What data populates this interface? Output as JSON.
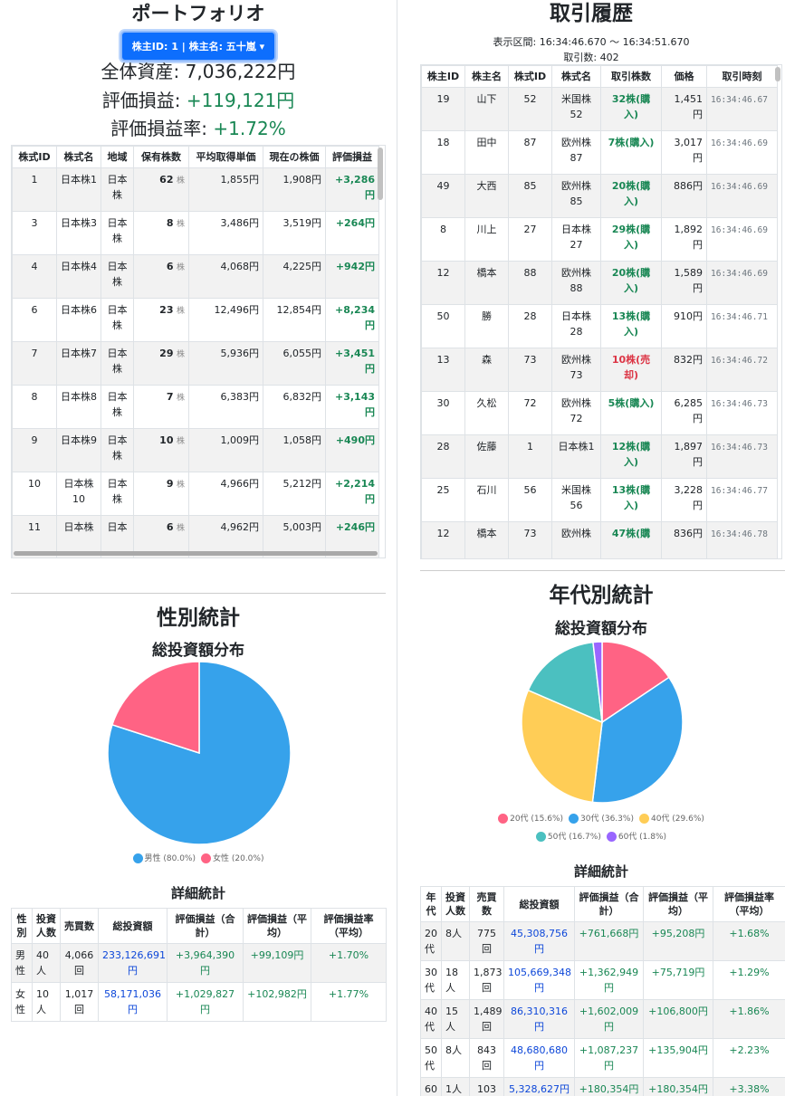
{
  "portfolio": {
    "title": "ポートフォリオ",
    "selector_label": "株主ID: 1 | 株主名: 五十嵐",
    "total_assets": "全体資産: 7,036,222円",
    "pl_label": "評価損益: ",
    "pl_value": "+119,121円",
    "pl_rate_label": "評価損益率: ",
    "pl_rate_value": "+1.72%",
    "columns": [
      "株式ID",
      "株式名",
      "地域",
      "保有株数",
      "平均取得単価",
      "現在の株価",
      "評価損益"
    ],
    "share_unit": "株",
    "rows": [
      {
        "id": "1",
        "name": "日本株1",
        "region": "日本株",
        "shares": "62",
        "avg": "1,855円",
        "price": "1,908円",
        "pl": "+3,286円"
      },
      {
        "id": "3",
        "name": "日本株3",
        "region": "日本株",
        "shares": "8",
        "avg": "3,486円",
        "price": "3,519円",
        "pl": "+264円"
      },
      {
        "id": "4",
        "name": "日本株4",
        "region": "日本株",
        "shares": "6",
        "avg": "4,068円",
        "price": "4,225円",
        "pl": "+942円"
      },
      {
        "id": "6",
        "name": "日本株6",
        "region": "日本株",
        "shares": "23",
        "avg": "12,496円",
        "price": "12,854円",
        "pl": "+8,234円"
      },
      {
        "id": "7",
        "name": "日本株7",
        "region": "日本株",
        "shares": "29",
        "avg": "5,936円",
        "price": "6,055円",
        "pl": "+3,451円"
      },
      {
        "id": "8",
        "name": "日本株8",
        "region": "日本株",
        "shares": "7",
        "avg": "6,383円",
        "price": "6,832円",
        "pl": "+3,143円"
      },
      {
        "id": "9",
        "name": "日本株9",
        "region": "日本株",
        "shares": "10",
        "avg": "1,009円",
        "price": "1,058円",
        "pl": "+490円"
      },
      {
        "id": "10",
        "name": "日本株10",
        "region": "日本株",
        "shares": "9",
        "avg": "4,966円",
        "price": "5,212円",
        "pl": "+2,214円"
      },
      {
        "id": "11",
        "name": "日本株",
        "region": "日本",
        "shares": "6",
        "avg": "4,962円",
        "price": "5,003円",
        "pl": "+246円"
      }
    ]
  },
  "trades": {
    "title": "取引履歴",
    "range": "表示区間: 16:34:46.670 〜 16:34:51.670",
    "count": "取引数: 402",
    "columns": [
      "株主ID",
      "株主名",
      "株式ID",
      "株式名",
      "取引株数",
      "価格",
      "取引時刻"
    ],
    "rows": [
      {
        "uid": "19",
        "uname": "山下",
        "sid": "52",
        "sname": "米国株52",
        "qty": "32株(購入)",
        "type": "buy",
        "price": "1,451円",
        "time": "16:34:46.67"
      },
      {
        "uid": "18",
        "uname": "田中",
        "sid": "87",
        "sname": "欧州株87",
        "qty": "7株(購入)",
        "type": "buy",
        "price": "3,017円",
        "time": "16:34:46.69"
      },
      {
        "uid": "49",
        "uname": "大西",
        "sid": "85",
        "sname": "欧州株85",
        "qty": "20株(購入)",
        "type": "buy",
        "price": "886円",
        "time": "16:34:46.69"
      },
      {
        "uid": "8",
        "uname": "川上",
        "sid": "27",
        "sname": "日本株27",
        "qty": "29株(購入)",
        "type": "buy",
        "price": "1,892円",
        "time": "16:34:46.69"
      },
      {
        "uid": "12",
        "uname": "橋本",
        "sid": "88",
        "sname": "欧州株88",
        "qty": "20株(購入)",
        "type": "buy",
        "price": "1,589円",
        "time": "16:34:46.69"
      },
      {
        "uid": "50",
        "uname": "勝",
        "sid": "28",
        "sname": "日本株28",
        "qty": "13株(購入)",
        "type": "buy",
        "price": "910円",
        "time": "16:34:46.71"
      },
      {
        "uid": "13",
        "uname": "森",
        "sid": "73",
        "sname": "欧州株73",
        "qty": "10株(売却)",
        "type": "sell",
        "price": "832円",
        "time": "16:34:46.72"
      },
      {
        "uid": "30",
        "uname": "久松",
        "sid": "72",
        "sname": "欧州株72",
        "qty": "5株(購入)",
        "type": "buy",
        "price": "6,285円",
        "time": "16:34:46.73"
      },
      {
        "uid": "28",
        "uname": "佐藤",
        "sid": "1",
        "sname": "日本株1",
        "qty": "12株(購入)",
        "type": "buy",
        "price": "1,897円",
        "time": "16:34:46.73"
      },
      {
        "uid": "25",
        "uname": "石川",
        "sid": "56",
        "sname": "米国株56",
        "qty": "13株(購入)",
        "type": "buy",
        "price": "3,228円",
        "time": "16:34:46.77"
      },
      {
        "uid": "12",
        "uname": "橋本",
        "sid": "73",
        "sname": "欧州株",
        "qty": "47株(購",
        "type": "buy",
        "price": "836円",
        "time": "16:34:46.78"
      }
    ]
  },
  "gender": {
    "title": "性別統計",
    "chart_title": "総投資額分布",
    "detail_title": "詳細統計",
    "columns": [
      "性別",
      "投資人数",
      "売買数",
      "総投資額",
      "評価損益（合計）",
      "評価損益（平均）",
      "評価損益率（平均）"
    ],
    "rows": [
      {
        "label": "男性",
        "people": "40人",
        "trades": "4,066回",
        "total": "233,126,691円",
        "pl_sum": "+3,964,390円",
        "pl_avg": "+99,109円",
        "rate": "+1.70%"
      },
      {
        "label": "女性",
        "people": "10人",
        "trades": "1,017回",
        "total": "58,171,036円",
        "pl_sum": "+1,029,827円",
        "pl_avg": "+102,982円",
        "rate": "+1.77%"
      }
    ]
  },
  "age": {
    "title": "年代別統計",
    "chart_title": "総投資額分布",
    "detail_title": "詳細統計",
    "columns": [
      "年代",
      "投資人数",
      "売買数",
      "総投資額",
      "評価損益（合計）",
      "評価損益（平均）",
      "評価損益率（平均）"
    ],
    "rows": [
      {
        "label": "20代",
        "people": "8人",
        "trades": "775回",
        "total": "45,308,756円",
        "pl_sum": "+761,668円",
        "pl_avg": "+95,208円",
        "rate": "+1.68%"
      },
      {
        "label": "30代",
        "people": "18人",
        "trades": "1,873回",
        "total": "105,669,348円",
        "pl_sum": "+1,362,949円",
        "pl_avg": "+75,719円",
        "rate": "+1.29%"
      },
      {
        "label": "40代",
        "people": "15人",
        "trades": "1,489回",
        "total": "86,310,316円",
        "pl_sum": "+1,602,009円",
        "pl_avg": "+106,800円",
        "rate": "+1.86%"
      },
      {
        "label": "50代",
        "people": "8人",
        "trades": "843回",
        "total": "48,680,680円",
        "pl_sum": "+1,087,237円",
        "pl_avg": "+135,904円",
        "rate": "+2.23%"
      },
      {
        "label": "60",
        "people": "1人",
        "trades": "103回",
        "total": "5,328,627円",
        "pl_sum": "+180,354円",
        "pl_avg": "+180,354円",
        "rate": "+3.38%"
      }
    ]
  },
  "chart_data": [
    {
      "type": "pie",
      "title": "総投資額分布",
      "labels": [
        "男性 (80.0%)",
        "女性 (20.0%)"
      ],
      "values": [
        80.0,
        20.0
      ],
      "colors": [
        "#36a2eb",
        "#ff6384"
      ],
      "legend": "bottom"
    },
    {
      "type": "pie",
      "title": "総投資額分布",
      "labels": [
        "20代 (15.6%)",
        "30代 (36.3%)",
        "40代 (29.6%)",
        "50代 (16.7%)",
        "60代 (1.8%)"
      ],
      "values": [
        15.6,
        36.3,
        29.6,
        16.7,
        1.8
      ],
      "colors": [
        "#ff6384",
        "#36a2eb",
        "#ffcd56",
        "#4bc0c0",
        "#9966ff"
      ],
      "legend": "bottom"
    }
  ]
}
